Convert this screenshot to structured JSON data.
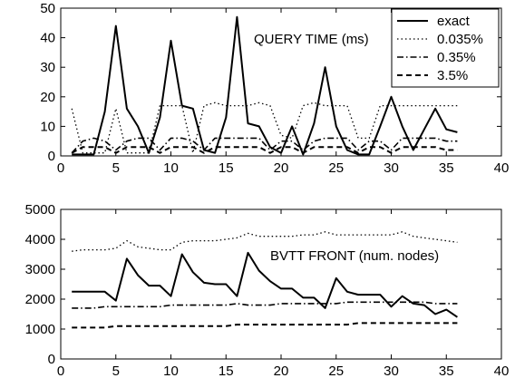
{
  "chart_data": [
    {
      "type": "line",
      "annotation": "QUERY TIME (ms)",
      "xlim": [
        0,
        40
      ],
      "ylim": [
        0,
        50
      ],
      "xticks": [
        0,
        5,
        10,
        15,
        20,
        25,
        30,
        35,
        40
      ],
      "yticks": [
        0,
        10,
        20,
        30,
        40,
        50
      ],
      "grid": false,
      "legend_position": "top-right",
      "x": [
        1,
        2,
        3,
        4,
        5,
        6,
        7,
        8,
        9,
        10,
        11,
        12,
        13,
        14,
        15,
        16,
        17,
        18,
        19,
        20,
        21,
        22,
        23,
        24,
        25,
        26,
        27,
        28,
        29,
        30,
        31,
        32,
        33,
        34,
        35,
        36
      ],
      "series": [
        {
          "name": "exact",
          "style": "solid",
          "values": [
            0.5,
            0.5,
            0.5,
            15,
            44,
            16,
            10,
            1,
            13,
            39,
            17,
            16,
            2,
            1,
            13,
            47,
            11,
            10,
            3,
            1,
            10,
            0.5,
            11,
            30,
            10,
            2,
            0.5,
            0.5,
            10,
            20,
            10,
            2,
            9,
            16,
            9,
            8
          ]
        },
        {
          "name": "0.035%",
          "style": "dotted",
          "values": [
            16,
            1,
            1,
            1,
            16,
            1,
            1,
            1,
            17,
            17,
            17,
            1,
            17,
            18,
            17,
            17,
            17,
            18,
            17,
            7,
            6,
            17,
            18,
            17,
            17,
            17,
            6,
            6,
            17,
            17,
            17,
            17,
            17,
            17,
            17,
            17
          ]
        },
        {
          "name": "0.35%",
          "style": "dashdot",
          "values": [
            1,
            5,
            6,
            5,
            2,
            5,
            6,
            6,
            2,
            6,
            6,
            5,
            2,
            6,
            6,
            6,
            6,
            6,
            2,
            5,
            5,
            2,
            5,
            6,
            6,
            6,
            2,
            5,
            5,
            2,
            6,
            6,
            6,
            6,
            5,
            5
          ]
        },
        {
          "name": "3.5%",
          "style": "dashed",
          "values": [
            1,
            3,
            3,
            3,
            1,
            3,
            3,
            3,
            1,
            3,
            3,
            3,
            1,
            3,
            3,
            3,
            3,
            3,
            1,
            3,
            3,
            1,
            3,
            3,
            3,
            3,
            1,
            3,
            3,
            1,
            3,
            3,
            3,
            3,
            2,
            2
          ]
        }
      ]
    },
    {
      "type": "line",
      "annotation": "BVTT FRONT (num. nodes)",
      "xlim": [
        0,
        40
      ],
      "ylim": [
        0,
        5000
      ],
      "xticks": [
        0,
        5,
        10,
        15,
        20,
        25,
        30,
        35,
        40
      ],
      "yticks": [
        0,
        1000,
        2000,
        3000,
        4000,
        5000
      ],
      "grid": false,
      "x": [
        1,
        2,
        3,
        4,
        5,
        6,
        7,
        8,
        9,
        10,
        11,
        12,
        13,
        14,
        15,
        16,
        17,
        18,
        19,
        20,
        21,
        22,
        23,
        24,
        25,
        26,
        27,
        28,
        29,
        30,
        31,
        32,
        33,
        34,
        35,
        36
      ],
      "series": [
        {
          "name": "exact",
          "style": "solid",
          "values": [
            2250,
            2250,
            2250,
            2250,
            1950,
            3350,
            2800,
            2450,
            2450,
            2100,
            3500,
            2900,
            2550,
            2500,
            2500,
            2100,
            3550,
            2950,
            2600,
            2350,
            2350,
            2050,
            2050,
            1700,
            2700,
            2250,
            2150,
            2150,
            2150,
            1750,
            2100,
            1850,
            1800,
            1500,
            1650,
            1400
          ]
        },
        {
          "name": "0.035%",
          "style": "dotted",
          "values": [
            3600,
            3650,
            3650,
            3650,
            3700,
            3950,
            3750,
            3700,
            3650,
            3650,
            3900,
            3950,
            3950,
            3950,
            4000,
            4050,
            4200,
            4100,
            4100,
            4100,
            4100,
            4150,
            4150,
            4250,
            4150,
            4150,
            4150,
            4150,
            4150,
            4150,
            4250,
            4100,
            4050,
            4000,
            3950,
            3900
          ]
        },
        {
          "name": "0.35%",
          "style": "dashdot",
          "values": [
            1700,
            1700,
            1700,
            1750,
            1750,
            1750,
            1750,
            1750,
            1750,
            1800,
            1800,
            1800,
            1800,
            1800,
            1800,
            1850,
            1800,
            1800,
            1800,
            1850,
            1850,
            1850,
            1850,
            1850,
            1850,
            1900,
            1900,
            1900,
            1900,
            1900,
            1900,
            1900,
            1900,
            1850,
            1850,
            1850
          ]
        },
        {
          "name": "3.5%",
          "style": "dashed",
          "values": [
            1050,
            1050,
            1050,
            1050,
            1100,
            1100,
            1100,
            1100,
            1100,
            1100,
            1100,
            1100,
            1100,
            1100,
            1100,
            1150,
            1150,
            1150,
            1150,
            1150,
            1150,
            1150,
            1150,
            1150,
            1150,
            1150,
            1200,
            1200,
            1200,
            1200,
            1200,
            1200,
            1200,
            1200,
            1200,
            1200
          ]
        }
      ]
    }
  ]
}
